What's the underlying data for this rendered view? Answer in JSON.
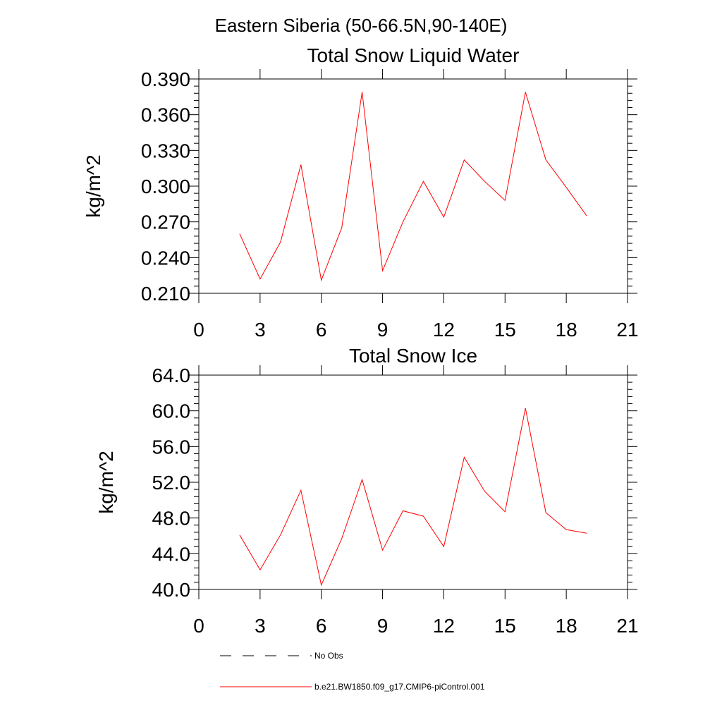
{
  "figure": {
    "title": "Eastern Siberia (50-66.5N,90-140E)"
  },
  "chart_data": [
    {
      "type": "line",
      "title": "Total Snow Liquid Water",
      "xlabel": "",
      "ylabel": "kg/m^2",
      "xlim": [
        0,
        21
      ],
      "ylim": [
        0.21,
        0.39
      ],
      "x_ticks": [
        "0",
        "3",
        "6",
        "9",
        "12",
        "15",
        "18",
        "21"
      ],
      "y_ticks": [
        "0.210",
        "0.240",
        "0.270",
        "0.300",
        "0.330",
        "0.360",
        "0.390"
      ],
      "grid": false,
      "series": [
        {
          "name": "b.e21.BW1850.f09_g17.CMIP6-piControl.001",
          "color": "#ff0000",
          "x": [
            2,
            3,
            4,
            5,
            6,
            7,
            8,
            9,
            10,
            11,
            12,
            13,
            14,
            15,
            16,
            17,
            18,
            19
          ],
          "values": [
            0.26,
            0.222,
            0.253,
            0.318,
            0.221,
            0.265,
            0.379,
            0.229,
            0.27,
            0.304,
            0.274,
            0.322,
            0.304,
            0.288,
            0.379,
            0.322,
            0.299,
            0.275
          ]
        }
      ]
    },
    {
      "type": "line",
      "title": "Total Snow Ice",
      "xlabel": "",
      "ylabel": "kg/m^2",
      "xlim": [
        0,
        21
      ],
      "ylim": [
        40,
        64
      ],
      "x_ticks": [
        "0",
        "3",
        "6",
        "9",
        "12",
        "15",
        "18",
        "21"
      ],
      "y_ticks": [
        "40.0",
        "44.0",
        "48.0",
        "52.0",
        "56.0",
        "60.0",
        "64.0"
      ],
      "grid": false,
      "series": [
        {
          "name": "b.e21.BW1850.f09_g17.CMIP6-piControl.001",
          "color": "#ff0000",
          "x": [
            2,
            3,
            4,
            5,
            6,
            7,
            8,
            9,
            10,
            11,
            12,
            13,
            14,
            15,
            16,
            17,
            18,
            19
          ],
          "values": [
            46.1,
            42.2,
            46.1,
            51.1,
            40.5,
            45.7,
            52.3,
            44.4,
            48.8,
            48.2,
            44.8,
            54.8,
            51.0,
            48.7,
            60.3,
            48.6,
            46.7,
            46.3
          ]
        }
      ]
    }
  ],
  "legend": {
    "placement": "bottom",
    "entries": [
      {
        "label": "No Obs",
        "color": "#000000",
        "style": "dashed"
      },
      {
        "label": "b.e21.BW1850.f09_g17.CMIP6-piControl.001",
        "color": "#ff0000",
        "style": "solid"
      }
    ]
  }
}
